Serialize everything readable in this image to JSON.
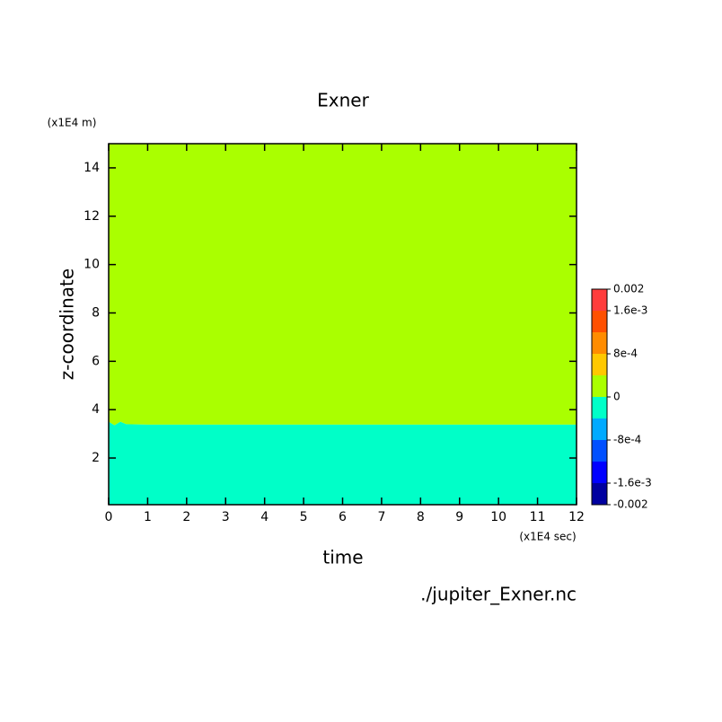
{
  "chart_data": {
    "type": "filled-contour",
    "title": "Exner",
    "xlabel": "time",
    "ylabel": "z-coordinate",
    "x_unit": "(x1E4 sec)",
    "y_unit": "(x1E4 m)",
    "source": "./jupiter_Exner.nc",
    "xlim": [
      0,
      12
    ],
    "ylim": [
      0.07,
      15
    ],
    "xticks": [
      0,
      1,
      2,
      3,
      4,
      5,
      6,
      7,
      8,
      9,
      10,
      11,
      12
    ],
    "yticks": [
      2,
      4,
      6,
      8,
      10,
      12,
      14
    ],
    "zero_contour": {
      "x": [
        0,
        0.15,
        0.3,
        0.45,
        1,
        12
      ],
      "z": [
        3.5,
        3.35,
        3.5,
        3.4,
        3.38,
        3.38
      ]
    },
    "levels": [
      -0.002,
      -0.0016,
      -0.0012,
      -0.0008,
      -0.0004,
      0,
      0.0004,
      0.0008,
      0.0012,
      0.0016,
      0.002
    ],
    "colors": [
      "#0000a0",
      "#0000ff",
      "#0050ff",
      "#00aaff",
      "#00ffc8",
      "#aaff00",
      "#ffc800",
      "#ff8c00",
      "#ff5000",
      "#ff3c3c"
    ],
    "colorbar_ticks": [
      {
        "value": 0.002,
        "label": "0.002"
      },
      {
        "value": 0.0016,
        "label": "1.6e-3"
      },
      {
        "value": 0.0008,
        "label": "8e-4"
      },
      0,
      {
        "value": -0.0008,
        "label": "-8e-4"
      },
      {
        "value": -0.0016,
        "label": "-1.6e-3"
      },
      {
        "value": -0.002,
        "label": "-0.002"
      }
    ]
  }
}
